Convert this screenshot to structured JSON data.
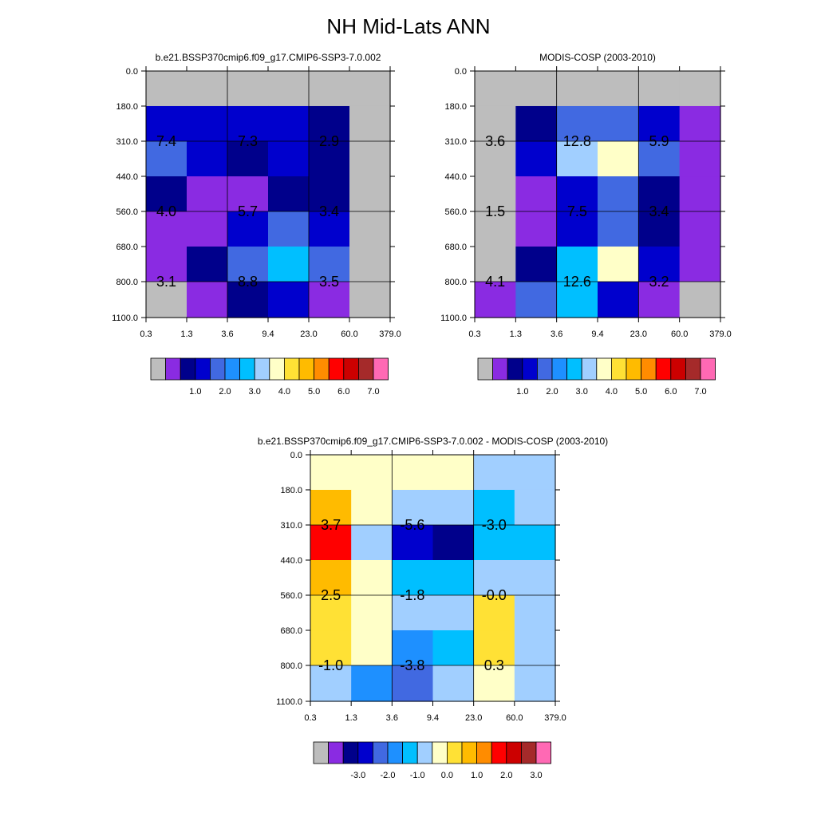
{
  "title": "NH Mid-Lats ANN",
  "palettes": {
    "absolute": [
      "#bdbdbd",
      "#8a2be2",
      "#00008b",
      "#0000cd",
      "#4169e1",
      "#1e90ff",
      "#00bfff",
      "#a1cfff",
      "#ffffc8",
      "#ffe135",
      "#ffbb00",
      "#ff8c00",
      "#ff0000",
      "#cc0000",
      "#a52a2a",
      "#ff69b4"
    ],
    "difference": [
      "#bdbdbd",
      "#8a2be2",
      "#00008b",
      "#0000cd",
      "#4169e1",
      "#1e90ff",
      "#00bfff",
      "#a1cfff",
      "#ffffc8",
      "#ffe135",
      "#ffbb00",
      "#ff8c00",
      "#ff0000",
      "#cc0000",
      "#a52a2a",
      "#ff69b4"
    ]
  },
  "chart_data": [
    {
      "type": "heatmap",
      "title": "b.e21.BSSP370cmip6.f09_g17.CMIP6-SSP3-7.0.002",
      "x_ticks": [
        "0.3",
        "1.3",
        "3.6",
        "9.4",
        "23.0",
        "60.0",
        "379.0"
      ],
      "y_ticks": [
        "0.0",
        "180.0",
        "310.0",
        "440.0",
        "560.0",
        "680.0",
        "800.0",
        "1100.0"
      ],
      "colorbar_labels": [
        "1.0",
        "2.0",
        "3.0",
        "4.0",
        "5.0",
        "6.0",
        "7.0"
      ],
      "colorbar_palette": "absolute",
      "cells": [
        [
          0,
          0,
          0,
          0,
          0,
          0
        ],
        [
          3,
          3,
          3,
          3,
          2,
          0
        ],
        [
          4,
          3,
          2,
          3,
          2,
          0
        ],
        [
          2,
          1,
          1,
          2,
          2,
          0
        ],
        [
          1,
          1,
          3,
          4,
          3,
          0
        ],
        [
          1,
          2,
          4,
          6,
          4,
          0
        ],
        [
          0,
          1,
          2,
          3,
          1,
          0
        ]
      ],
      "labels": [
        {
          "text": "7.4",
          "col": 0.5,
          "row": 1.5
        },
        {
          "text": "7.3",
          "col": 2.5,
          "row": 1.5
        },
        {
          "text": "2.9",
          "col": 4.5,
          "row": 1.5
        },
        {
          "text": "4.0",
          "col": 0.5,
          "row": 3.5
        },
        {
          "text": "5.7",
          "col": 2.5,
          "row": 3.5
        },
        {
          "text": "3.4",
          "col": 4.5,
          "row": 3.5
        },
        {
          "text": "3.1",
          "col": 0.5,
          "row": 5.5
        },
        {
          "text": "8.8",
          "col": 2.5,
          "row": 5.5
        },
        {
          "text": "3.5",
          "col": 4.5,
          "row": 5.5
        }
      ]
    },
    {
      "type": "heatmap",
      "title": "MODIS-COSP (2003-2010)",
      "x_ticks": [
        "0.3",
        "1.3",
        "3.6",
        "9.4",
        "23.0",
        "60.0",
        "379.0"
      ],
      "y_ticks": [
        "0.0",
        "180.0",
        "310.0",
        "440.0",
        "560.0",
        "680.0",
        "800.0",
        "1100.0"
      ],
      "colorbar_labels": [
        "1.0",
        "2.0",
        "3.0",
        "4.0",
        "5.0",
        "6.0",
        "7.0"
      ],
      "colorbar_palette": "absolute",
      "cells": [
        [
          0,
          0,
          0,
          0,
          0,
          0
        ],
        [
          0,
          2,
          4,
          4,
          3,
          1
        ],
        [
          0,
          3,
          7,
          8,
          4,
          1
        ],
        [
          0,
          1,
          3,
          4,
          2,
          1
        ],
        [
          0,
          1,
          3,
          4,
          2,
          1
        ],
        [
          0,
          2,
          6,
          8,
          3,
          1
        ],
        [
          1,
          4,
          6,
          3,
          1,
          0
        ]
      ],
      "labels": [
        {
          "text": "3.6",
          "col": 0.5,
          "row": 1.5
        },
        {
          "text": "12.8",
          "col": 2.5,
          "row": 1.5
        },
        {
          "text": "5.9",
          "col": 4.5,
          "row": 1.5
        },
        {
          "text": "1.5",
          "col": 0.5,
          "row": 3.5
        },
        {
          "text": "7.5",
          "col": 2.5,
          "row": 3.5
        },
        {
          "text": "3.4",
          "col": 4.5,
          "row": 3.5
        },
        {
          "text": "4.1",
          "col": 0.5,
          "row": 5.5
        },
        {
          "text": "12.6",
          "col": 2.5,
          "row": 5.5
        },
        {
          "text": "3.2",
          "col": 4.5,
          "row": 5.5
        }
      ]
    },
    {
      "type": "heatmap",
      "title": "b.e21.BSSP370cmip6.f09_g17.CMIP6-SSP3-7.0.002 - MODIS-COSP (2003-2010)",
      "x_ticks": [
        "0.3",
        "1.3",
        "3.6",
        "9.4",
        "23.0",
        "60.0",
        "379.0"
      ],
      "y_ticks": [
        "0.0",
        "180.0",
        "310.0",
        "440.0",
        "560.0",
        "680.0",
        "800.0",
        "1100.0"
      ],
      "colorbar_labels": [
        "-3.0",
        "-2.0",
        "-1.0",
        "0.0",
        "1.0",
        "2.0",
        "3.0"
      ],
      "colorbar_palette": "difference",
      "cells": [
        [
          8,
          8,
          8,
          8,
          7,
          7
        ],
        [
          10,
          8,
          7,
          7,
          6,
          7
        ],
        [
          12,
          7,
          3,
          2,
          6,
          6
        ],
        [
          10,
          8,
          6,
          6,
          7,
          7
        ],
        [
          9,
          8,
          7,
          7,
          9,
          7
        ],
        [
          9,
          8,
          5,
          6,
          9,
          7
        ],
        [
          7,
          5,
          4,
          7,
          8,
          7
        ]
      ],
      "labels": [
        {
          "text": "3.7",
          "col": 0.5,
          "row": 1.5
        },
        {
          "text": "-5.6",
          "col": 2.5,
          "row": 1.5
        },
        {
          "text": "-3.0",
          "col": 4.5,
          "row": 1.5
        },
        {
          "text": "2.5",
          "col": 0.5,
          "row": 3.5
        },
        {
          "text": "-1.8",
          "col": 2.5,
          "row": 3.5
        },
        {
          "text": "-0.0",
          "col": 4.5,
          "row": 3.5
        },
        {
          "text": "-1.0",
          "col": 0.5,
          "row": 5.5
        },
        {
          "text": "-3.8",
          "col": 2.5,
          "row": 5.5
        },
        {
          "text": "0.3",
          "col": 4.5,
          "row": 5.5
        }
      ]
    }
  ]
}
